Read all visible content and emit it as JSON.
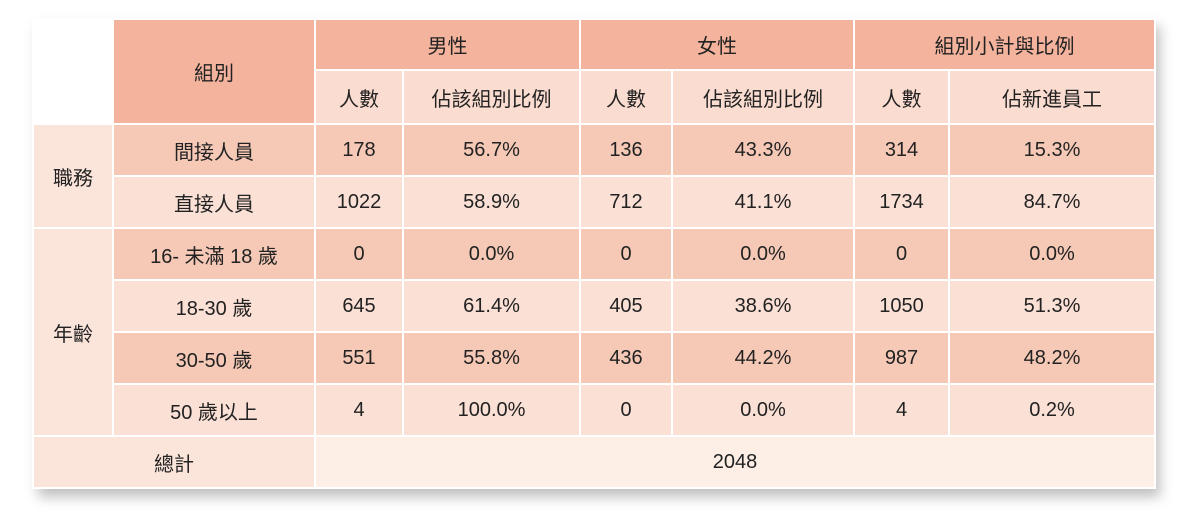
{
  "header": {
    "group_label": "組別",
    "male": "男性",
    "female": "女性",
    "subtotal": "組別小計與比例",
    "count": "人數",
    "group_ratio": "佔該組別比例",
    "new_employee_ratio": "佔新進員工"
  },
  "categories": {
    "duty": "職務",
    "age": "年齡"
  },
  "rows": [
    {
      "label": "間接人員",
      "male_count": "178",
      "male_ratio": "56.7%",
      "female_count": "136",
      "female_ratio": "43.3%",
      "sub_count": "314",
      "sub_ratio": "15.3%"
    },
    {
      "label": "直接人員",
      "male_count": "1022",
      "male_ratio": "58.9%",
      "female_count": "712",
      "female_ratio": "41.1%",
      "sub_count": "1734",
      "sub_ratio": "84.7%"
    },
    {
      "label": "16- 未滿 18 歲",
      "male_count": "0",
      "male_ratio": "0.0%",
      "female_count": "0",
      "female_ratio": "0.0%",
      "sub_count": "0",
      "sub_ratio": "0.0%"
    },
    {
      "label": "18-30 歲",
      "male_count": "645",
      "male_ratio": "61.4%",
      "female_count": "405",
      "female_ratio": "38.6%",
      "sub_count": "1050",
      "sub_ratio": "51.3%"
    },
    {
      "label": "30-50 歲",
      "male_count": "551",
      "male_ratio": "55.8%",
      "female_count": "436",
      "female_ratio": "44.2%",
      "sub_count": "987",
      "sub_ratio": "48.2%"
    },
    {
      "label": "50 歲以上",
      "male_count": "4",
      "male_ratio": "100.0%",
      "female_count": "0",
      "female_ratio": "0.0%",
      "sub_count": "4",
      "sub_ratio": "0.2%"
    }
  ],
  "total": {
    "label": "總計",
    "value": "2048"
  },
  "colors": {
    "header_main": "#f4b39d",
    "header_sub": "#fbdcd0",
    "row_dark": "#f6c9b7",
    "row_light": "#fbe0d5"
  }
}
